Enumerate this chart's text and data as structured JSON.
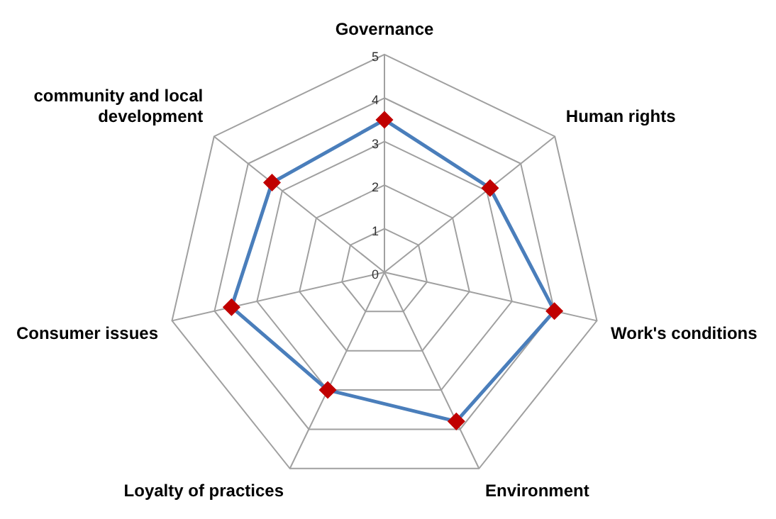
{
  "chart_data": {
    "type": "radar",
    "categories": [
      "Governance",
      "Human rights",
      "Work's conditions",
      "Environment",
      "Loyalty of practices",
      "Consumer issues",
      "community and local development"
    ],
    "series": [
      {
        "color": "#4a7ebb",
        "colors": [
          "#c00000",
          "#c00000",
          "#c00000",
          "#c00000",
          "#c00000",
          "#c00000",
          "#c00000"
        ],
        "values": [
          3.5,
          3.1,
          4.0,
          3.8,
          3.0,
          3.6,
          3.3
        ]
      }
    ],
    "ylim": [
      0,
      5
    ],
    "yticks": [
      0,
      1,
      2,
      3,
      4,
      5
    ],
    "grid": true,
    "legend": false,
    "marker": "diamond",
    "line_style": "solid"
  }
}
